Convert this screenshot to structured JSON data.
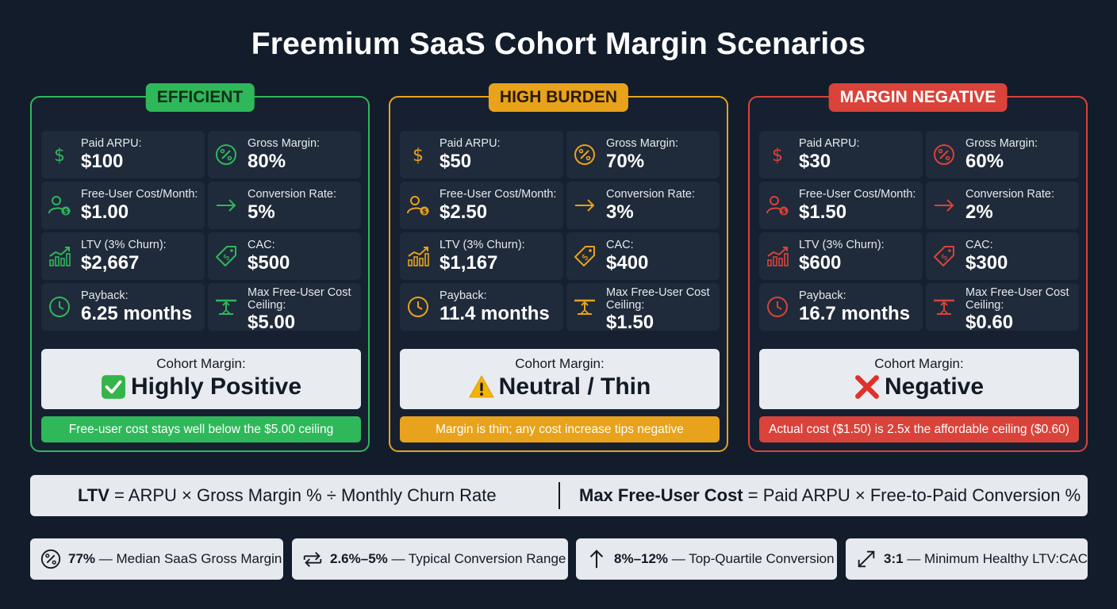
{
  "title": "Freemium SaaS Cohort Margin Scenarios",
  "colors": {
    "green": "#2fb85a",
    "orange": "#e8a21b",
    "red": "#d9433a"
  },
  "scenarios": [
    {
      "badge": "EFFICIENT",
      "paid_arpu_label": "Paid ARPU:",
      "paid_arpu": "$100",
      "gross_margin_label": "Gross Margin:",
      "gross_margin": "80%",
      "free_cost_label": "Free-User Cost/Month:",
      "free_cost": "$1.00",
      "conversion_label": "Conversion Rate:",
      "conversion": "5%",
      "ltv_label": "LTV (3% Churn):",
      "ltv": "$2,667",
      "cac_label": "CAC:",
      "cac": "$500",
      "payback_label": "Payback:",
      "payback": "6.25 months",
      "ceiling_label": "Max Free-User Cost Ceiling:",
      "ceiling": "$5.00",
      "result_label": "Cohort Margin:",
      "result_icon": "check-mark-icon",
      "result": "Highly Positive",
      "note": "Free-user cost stays well below the $5.00 ceiling"
    },
    {
      "badge": "HIGH BURDEN",
      "paid_arpu_label": "Paid ARPU:",
      "paid_arpu": "$50",
      "gross_margin_label": "Gross Margin:",
      "gross_margin": "70%",
      "free_cost_label": "Free-User Cost/Month:",
      "free_cost": "$2.50",
      "conversion_label": "Conversion Rate:",
      "conversion": "3%",
      "ltv_label": "LTV (3% Churn):",
      "ltv": "$1,167",
      "cac_label": "CAC:",
      "cac": "$400",
      "payback_label": "Payback:",
      "payback": "11.4 months",
      "ceiling_label": "Max Free-User Cost Ceiling:",
      "ceiling": "$1.50",
      "result_label": "Cohort Margin:",
      "result_icon": "warning-icon",
      "result": "Neutral / Thin",
      "note": "Margin is thin; any cost increase tips negative"
    },
    {
      "badge": "MARGIN NEGATIVE",
      "paid_arpu_label": "Paid ARPU:",
      "paid_arpu": "$30",
      "gross_margin_label": "Gross Margin:",
      "gross_margin": "60%",
      "free_cost_label": "Free-User Cost/Month:",
      "free_cost": "$1.50",
      "conversion_label": "Conversion Rate:",
      "conversion": "2%",
      "ltv_label": "LTV (3% Churn):",
      "ltv": "$600",
      "cac_label": "CAC:",
      "cac": "$300",
      "payback_label": "Payback:",
      "payback": "16.7 months",
      "ceiling_label": "Max Free-User Cost Ceiling:",
      "ceiling": "$0.60",
      "result_label": "Cohort Margin:",
      "result_icon": "cross-mark-icon",
      "result": "Negative",
      "note": "Actual cost ($1.50) is 2.5x the affordable ceiling ($0.60)"
    }
  ],
  "formula": {
    "ltv_term": "LTV",
    "ltv_rest": "= ARPU × Gross Margin % ÷ Monthly Churn Rate",
    "max_term": "Max Free-User Cost",
    "max_rest": "= Paid ARPU × Free-to-Paid Conversion %"
  },
  "stats": [
    {
      "icon": "percent-icon",
      "value": "77%",
      "text": "— Median SaaS Gross Margin"
    },
    {
      "icon": "swap-arrows-icon",
      "value": "2.6%–5%",
      "text": "— Typical Conversion Range"
    },
    {
      "icon": "arrow-up-icon",
      "value": "8%–12%",
      "text": "— Top-Quartile Conversion"
    },
    {
      "icon": "expand-arrows-icon",
      "value": "3:1",
      "text": "— Minimum Healthy LTV:CAC"
    }
  ]
}
